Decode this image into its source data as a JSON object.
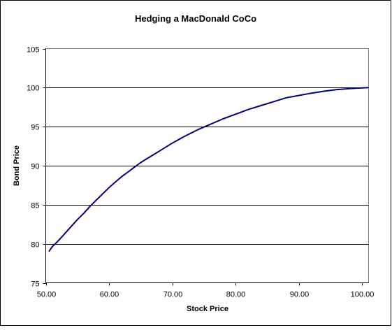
{
  "chart_data": {
    "type": "line",
    "title": "Hedging a MacDonald CoCo",
    "xlabel": "Stock Price",
    "ylabel": "Bond Price",
    "xlim": [
      50,
      101
    ],
    "ylim": [
      75,
      105
    ],
    "x_ticks": [
      "50.00",
      "60.00",
      "70.00",
      "80.00",
      "90.00",
      "100.00"
    ],
    "y_ticks": [
      "75",
      "80",
      "85",
      "90",
      "95",
      "100",
      "105"
    ],
    "grid": "horizontal",
    "legend": "none",
    "series": [
      {
        "color": "#000080",
        "x": [
          50.5,
          51,
          52,
          53,
          54,
          55,
          56,
          57,
          58,
          59,
          60,
          61,
          62,
          63,
          64,
          65,
          66,
          67,
          68,
          69,
          70,
          72,
          74,
          76,
          78,
          80,
          82,
          84,
          86,
          88,
          90,
          92,
          94,
          96,
          98,
          100,
          101
        ],
        "values": [
          79.0,
          79.6,
          80.4,
          81.3,
          82.2,
          83.1,
          83.9,
          84.8,
          85.6,
          86.4,
          87.2,
          87.9,
          88.6,
          89.2,
          89.8,
          90.4,
          90.9,
          91.4,
          91.9,
          92.4,
          92.9,
          93.8,
          94.6,
          95.3,
          96.0,
          96.6,
          97.2,
          97.7,
          98.2,
          98.7,
          99.0,
          99.3,
          99.55,
          99.75,
          99.88,
          99.97,
          100.0
        ]
      }
    ]
  }
}
